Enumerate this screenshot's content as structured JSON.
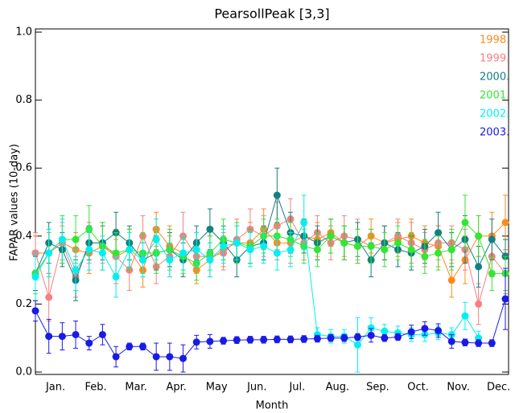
{
  "chart_data": {
    "type": "line",
    "title": "PearsollPeak [3,3]",
    "xlabel": "Month",
    "ylabel": "FAPAR values (10-day)",
    "categories": [
      null,
      "Jan.",
      null,
      null,
      "Feb.",
      null,
      null,
      "Mar.",
      null,
      null,
      "Apr.",
      null,
      null,
      "May",
      null,
      null,
      "Jun.",
      null,
      null,
      "Jul.",
      null,
      null,
      "Aug.",
      null,
      null,
      "Sep.",
      null,
      null,
      "Oct.",
      null,
      null,
      "Nov.",
      null,
      null,
      "Dec.",
      null
    ],
    "ylim": [
      0,
      1
    ],
    "yticks": [
      {
        "value": 0,
        "label": "0.0"
      },
      0.2,
      0.4,
      0.6,
      0.8,
      {
        "value": 1,
        "label": "1.0"
      }
    ],
    "series": [
      {
        "name": "1998.",
        "color": "#ff8a1c",
        "values": [
          0.35,
          0.35,
          0.38,
          0.36,
          0.35,
          0.37,
          0.34,
          0.36,
          0.3,
          0.42,
          0.37,
          0.35,
          0.3,
          0.33,
          0.36,
          0.38,
          0.38,
          0.42,
          0.38,
          0.38,
          0.4,
          0.39,
          0.41,
          0.38,
          0.37,
          0.4,
          0.38,
          0.39,
          0.4,
          0.38,
          0.37,
          0.27,
          0.33,
          0.4,
          0.4,
          0.44
        ],
        "errors": [
          0.05,
          0.06,
          0.05,
          0.05,
          0.06,
          0.07,
          0.08,
          0.06,
          0.05,
          0.05,
          0.06,
          0.05,
          0.04,
          0.05,
          0.05,
          0.05,
          0.06,
          0.06,
          0.05,
          0.06,
          0.05,
          0.05,
          0.04,
          0.05,
          0.05,
          0.05,
          0.05,
          0.05,
          0.05,
          0.05,
          0.06,
          0.05,
          0.07,
          0.06,
          0.07,
          0.08
        ]
      },
      {
        "name": "1999.",
        "color": "#f58080",
        "values": [
          0.35,
          0.22,
          0.38,
          0.28,
          0.38,
          0.38,
          0.34,
          0.3,
          0.4,
          0.31,
          0.34,
          0.4,
          0.34,
          0.34,
          0.35,
          0.39,
          0.42,
          0.4,
          0.43,
          0.45,
          0.38,
          0.41,
          0.38,
          0.4,
          0.39,
          0.37,
          0.38,
          0.4,
          0.38,
          0.36,
          0.38,
          0.38,
          0.36,
          0.2,
          0.34,
          0.29
        ],
        "errors": [
          0.06,
          0.07,
          0.06,
          0.06,
          0.06,
          0.06,
          0.05,
          0.06,
          0.06,
          0.05,
          0.06,
          0.07,
          0.05,
          0.06,
          0.05,
          0.06,
          0.06,
          0.06,
          0.07,
          0.06,
          0.05,
          0.05,
          0.05,
          0.06,
          0.06,
          0.05,
          0.05,
          0.05,
          0.06,
          0.05,
          0.05,
          0.05,
          0.06,
          0.06,
          0.06,
          0.06
        ]
      },
      {
        "name": "2000.",
        "color": "#138080",
        "values": [
          0.29,
          0.38,
          0.36,
          0.27,
          0.38,
          0.38,
          0.41,
          0.38,
          0.33,
          0.35,
          0.36,
          0.33,
          0.38,
          0.42,
          0.38,
          0.33,
          0.37,
          0.38,
          0.52,
          0.41,
          0.4,
          0.38,
          0.4,
          0.38,
          0.39,
          0.33,
          0.38,
          0.36,
          0.35,
          0.37,
          0.41,
          0.36,
          0.39,
          0.31,
          0.39,
          0.34
        ],
        "errors": [
          0.05,
          0.06,
          0.05,
          0.06,
          0.05,
          0.05,
          0.06,
          0.05,
          0.05,
          0.05,
          0.05,
          0.05,
          0.05,
          0.06,
          0.05,
          0.05,
          0.05,
          0.05,
          0.08,
          0.06,
          0.05,
          0.05,
          0.05,
          0.05,
          0.05,
          0.05,
          0.05,
          0.05,
          0.05,
          0.05,
          0.06,
          0.05,
          0.07,
          0.06,
          0.06,
          0.05
        ]
      },
      {
        "name": "2001.",
        "color": "#33e633",
        "values": [
          0.29,
          0.35,
          0.39,
          0.39,
          0.42,
          0.37,
          0.35,
          0.36,
          0.35,
          0.35,
          0.36,
          0.34,
          0.32,
          0.35,
          0.39,
          0.38,
          0.37,
          0.4,
          0.4,
          0.39,
          0.37,
          0.36,
          0.4,
          0.38,
          0.37,
          0.37,
          0.36,
          0.38,
          0.36,
          0.34,
          0.35,
          0.36,
          0.44,
          0.4,
          0.29,
          0.29
        ],
        "errors": [
          0.06,
          0.07,
          0.07,
          0.07,
          0.07,
          0.07,
          0.06,
          0.06,
          0.06,
          0.06,
          0.06,
          0.05,
          0.05,
          0.05,
          0.06,
          0.06,
          0.05,
          0.05,
          0.05,
          0.05,
          0.05,
          0.05,
          0.05,
          0.05,
          0.05,
          0.05,
          0.05,
          0.05,
          0.05,
          0.05,
          0.05,
          0.06,
          0.08,
          0.06,
          0.05,
          0.05
        ]
      },
      {
        "name": "2002.",
        "color": "#00f0f0",
        "values": [
          0.28,
          0.35,
          0.39,
          0.3,
          0.36,
          0.35,
          0.28,
          0.36,
          0.33,
          0.39,
          0.33,
          0.35,
          0.36,
          0.33,
          0.37,
          0.38,
          0.36,
          0.37,
          0.35,
          0.36,
          0.44,
          0.11,
          0.105,
          0.105,
          0.08,
          0.13,
          0.12,
          0.115,
          0.11,
          0.11,
          0.115,
          0.11,
          0.165,
          0.1,
          null,
          null
        ],
        "errors": [
          0.07,
          0.07,
          0.06,
          0.06,
          0.06,
          0.05,
          0.06,
          0.05,
          0.05,
          0.06,
          0.05,
          0.05,
          0.05,
          0.05,
          0.05,
          0.05,
          0.05,
          0.05,
          0.05,
          0.05,
          0.08,
          0.02,
          0.02,
          0.02,
          0.08,
          0.03,
          0.02,
          0.02,
          0.02,
          0.02,
          0.02,
          0.02,
          0.04,
          0.02,
          null,
          null
        ]
      },
      {
        "name": "2003.",
        "color": "#1a1ae6",
        "values": [
          0.18,
          0.105,
          0.105,
          0.11,
          0.085,
          0.11,
          0.045,
          0.075,
          0.075,
          0.045,
          0.045,
          0.04,
          0.088,
          0.09,
          0.092,
          0.094,
          0.095,
          0.095,
          0.096,
          0.096,
          0.097,
          0.098,
          0.1,
          0.1,
          0.103,
          0.108,
          0.1,
          0.103,
          0.118,
          0.128,
          0.122,
          0.09,
          0.087,
          0.085,
          0.085,
          0.215
        ],
        "errors": [
          0.03,
          0.05,
          0.04,
          0.04,
          0.02,
          0.03,
          0.03,
          0.01,
          0.01,
          0.04,
          0.04,
          0.04,
          0.02,
          0.02,
          0.01,
          0.01,
          0.01,
          0.01,
          0.01,
          0.01,
          0.01,
          0.01,
          0.01,
          0.01,
          0.01,
          0.02,
          0.01,
          0.01,
          0.02,
          0.02,
          0.02,
          0.02,
          0.01,
          0.01,
          0.01,
          0.09
        ]
      }
    ]
  }
}
